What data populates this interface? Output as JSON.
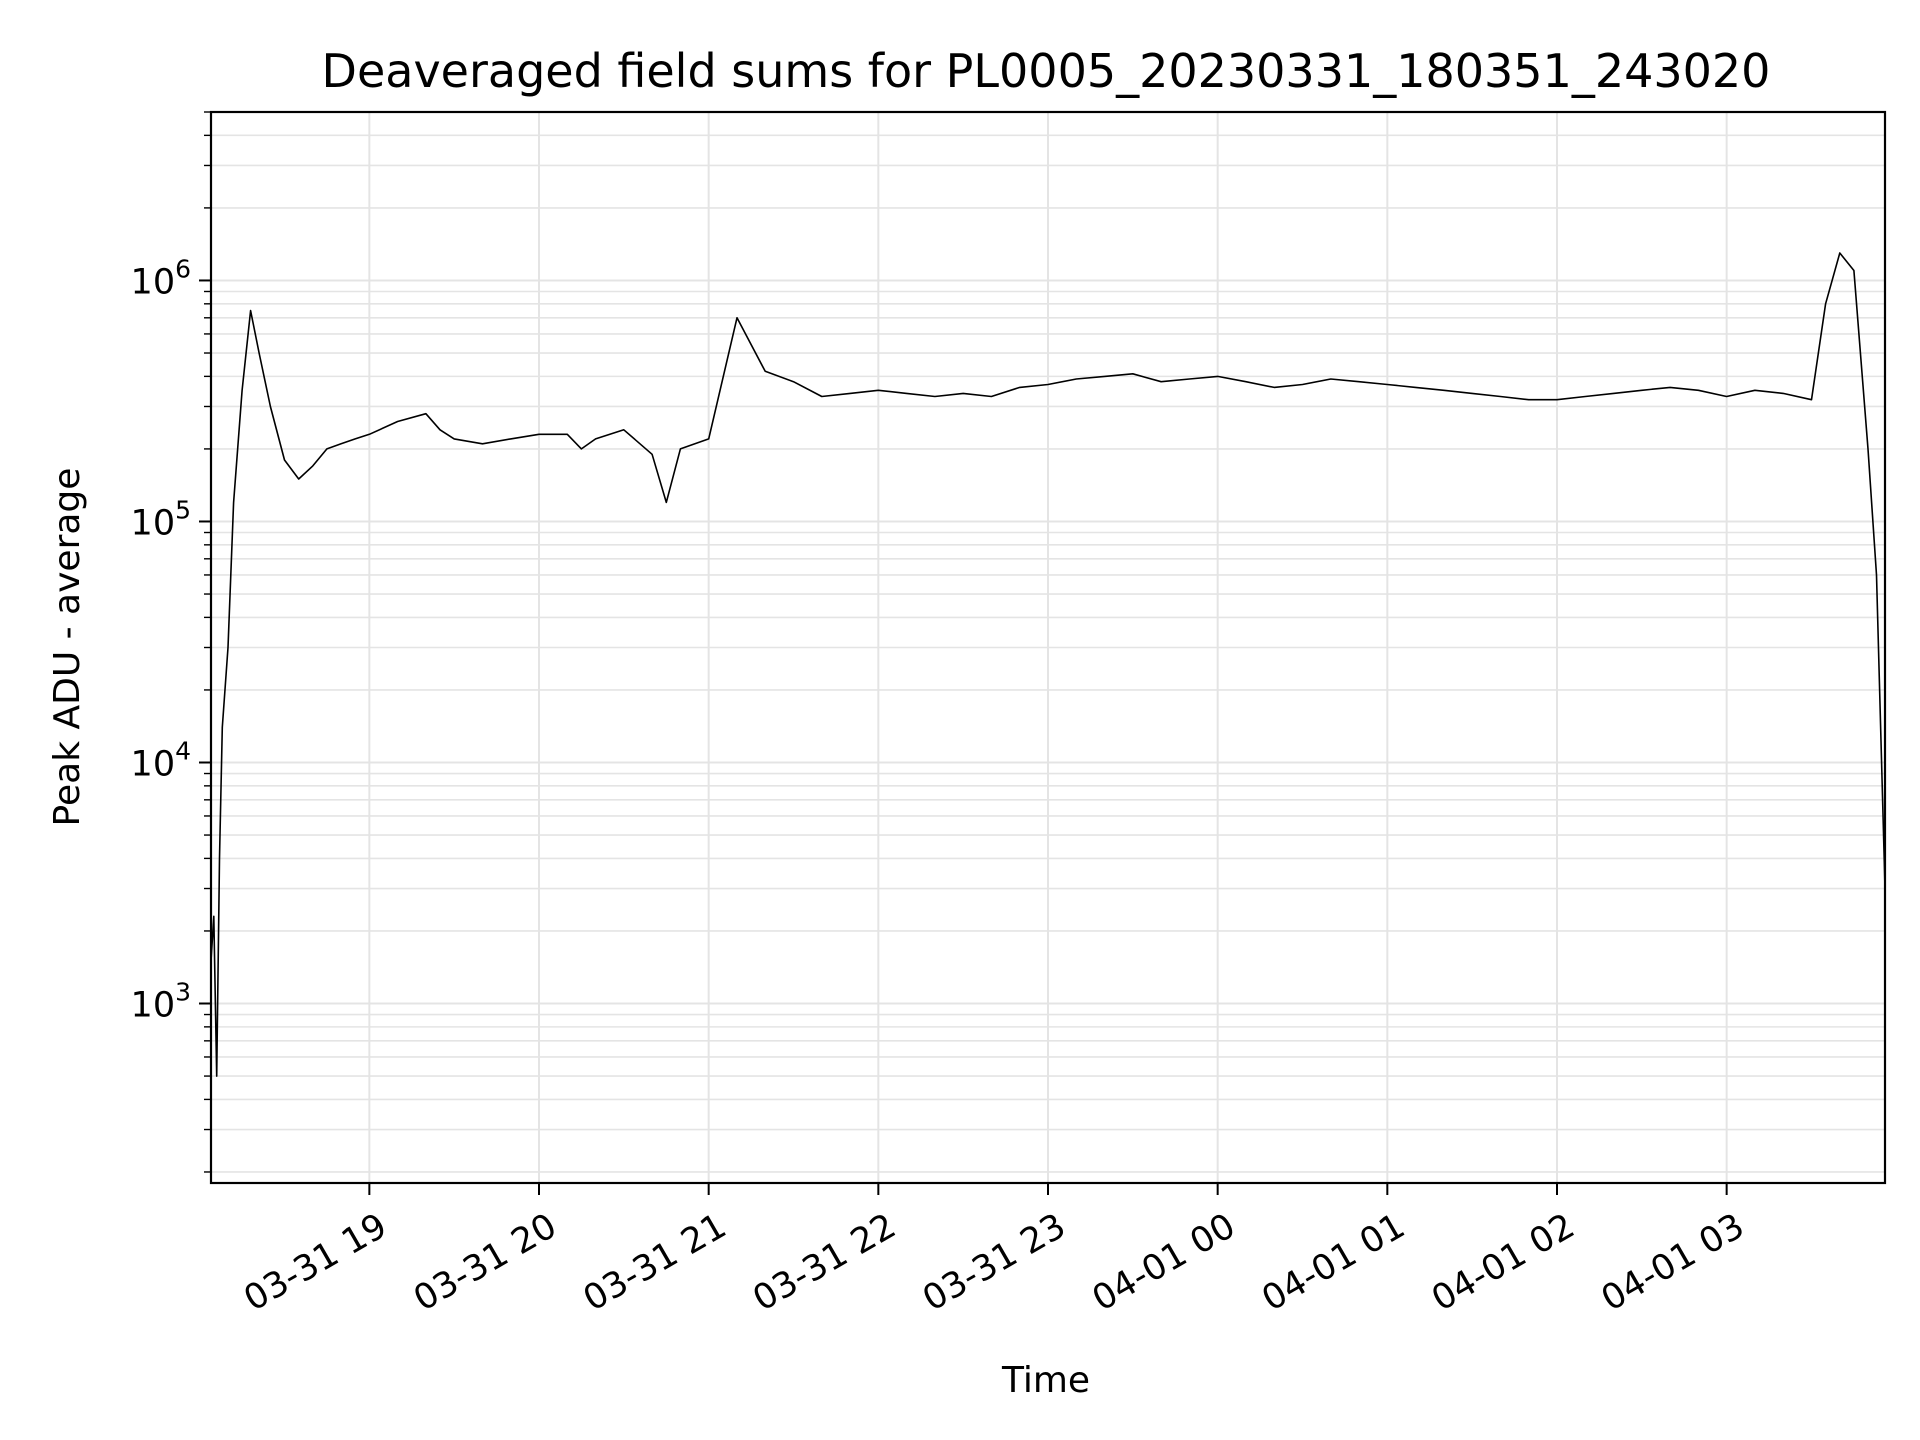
{
  "chart_data": {
    "type": "line",
    "title": "Deaveraged field sums for PL0005_20230331_180351_243020",
    "xlabel": "Time",
    "ylabel": "Peak ADU - average",
    "yscale": "log",
    "xlim": [
      "03-31 18:04",
      "04-01 03:56"
    ],
    "ylim": [
      180,
      5000000
    ],
    "grid": true,
    "x_ticks": [
      {
        "label": "03-31 19",
        "t": "03-31 19:00"
      },
      {
        "label": "03-31 20",
        "t": "03-31 20:00"
      },
      {
        "label": "03-31 21",
        "t": "03-31 21:00"
      },
      {
        "label": "03-31 22",
        "t": "03-31 22:00"
      },
      {
        "label": "03-31 23",
        "t": "03-31 23:00"
      },
      {
        "label": "04-01 00",
        "t": "04-01 00:00"
      },
      {
        "label": "04-01 01",
        "t": "04-01 01:00"
      },
      {
        "label": "04-01 02",
        "t": "04-01 02:00"
      },
      {
        "label": "04-01 03",
        "t": "04-01 03:00"
      }
    ],
    "y_ticks": [
      {
        "base": "10",
        "exp": "3",
        "value": 1000
      },
      {
        "base": "10",
        "exp": "4",
        "value": 10000
      },
      {
        "base": "10",
        "exp": "5",
        "value": 100000
      },
      {
        "base": "10",
        "exp": "6",
        "value": 1000000
      }
    ],
    "series": [
      {
        "color": "#000000",
        "x": [
          "03-31 18:04",
          "03-31 18:05",
          "03-31 18:06",
          "03-31 18:07",
          "03-31 18:08",
          "03-31 18:10",
          "03-31 18:12",
          "03-31 18:15",
          "03-31 18:18",
          "03-31 18:21",
          "03-31 18:25",
          "03-31 18:30",
          "03-31 18:35",
          "03-31 18:40",
          "03-31 18:45",
          "03-31 18:50",
          "03-31 18:55",
          "03-31 19:00",
          "03-31 19:10",
          "03-31 19:20",
          "03-31 19:25",
          "03-31 19:30",
          "03-31 19:40",
          "03-31 19:50",
          "03-31 20:00",
          "03-31 20:10",
          "03-31 20:15",
          "03-31 20:20",
          "03-31 20:30",
          "03-31 20:40",
          "03-31 20:45",
          "03-31 20:50",
          "03-31 21:00",
          "03-31 21:10",
          "03-31 21:20",
          "03-31 21:30",
          "03-31 21:40",
          "03-31 21:50",
          "03-31 22:00",
          "03-31 22:10",
          "03-31 22:20",
          "03-31 22:30",
          "03-31 22:40",
          "03-31 22:50",
          "03-31 23:00",
          "03-31 23:10",
          "03-31 23:20",
          "03-31 23:30",
          "03-31 23:40",
          "03-31 23:50",
          "04-01 00:00",
          "04-01 00:10",
          "04-01 00:20",
          "04-01 00:30",
          "04-01 00:40",
          "04-01 00:50",
          "04-01 01:00",
          "04-01 01:10",
          "04-01 01:20",
          "04-01 01:30",
          "04-01 01:40",
          "04-01 01:50",
          "04-01 02:00",
          "04-01 02:10",
          "04-01 02:20",
          "04-01 02:30",
          "04-01 02:40",
          "04-01 02:50",
          "04-01 03:00",
          "04-01 03:10",
          "04-01 03:20",
          "04-01 03:30",
          "04-01 03:35",
          "04-01 03:40",
          "04-01 03:45",
          "04-01 03:50",
          "04-01 03:53",
          "04-01 03:56"
        ],
        "y": [
          1500,
          2300,
          500,
          4000,
          14000,
          30000,
          120000,
          350000,
          750000,
          500000,
          300000,
          180000,
          150000,
          170000,
          200000,
          210000,
          220000,
          230000,
          260000,
          280000,
          240000,
          220000,
          210000,
          220000,
          230000,
          230000,
          200000,
          220000,
          240000,
          190000,
          120000,
          200000,
          220000,
          700000,
          420000,
          380000,
          330000,
          340000,
          350000,
          340000,
          330000,
          340000,
          330000,
          360000,
          370000,
          390000,
          400000,
          410000,
          380000,
          390000,
          400000,
          380000,
          360000,
          370000,
          390000,
          380000,
          370000,
          360000,
          350000,
          340000,
          330000,
          320000,
          320000,
          330000,
          340000,
          350000,
          360000,
          350000,
          330000,
          350000,
          340000,
          320000,
          800000,
          1300000,
          1100000,
          200000,
          60000,
          3000
        ]
      }
    ]
  }
}
